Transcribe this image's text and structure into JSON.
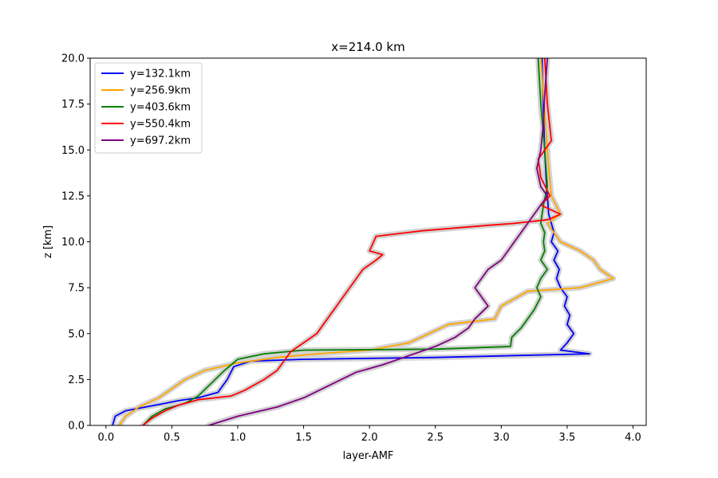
{
  "chart_data": {
    "type": "line",
    "title": "x=214.0 km",
    "xlabel": "layer-AMF",
    "ylabel": "z [km]",
    "xlim": [
      -0.12,
      4.1
    ],
    "ylim": [
      0,
      20
    ],
    "xticks": [
      "0.0",
      "0.5",
      "1.0",
      "1.5",
      "2.0",
      "2.5",
      "3.0",
      "3.5",
      "4.0"
    ],
    "yticks": [
      "0.0",
      "2.5",
      "5.0",
      "7.5",
      "10.0",
      "12.5",
      "15.0",
      "17.5",
      "20.0"
    ],
    "grid": false,
    "legend_position": "top-left",
    "uncertainty_band_color": "#d3d3d3",
    "series": [
      {
        "name": "y=132.1km",
        "color": "#0000ff",
        "points": [
          [
            0.05,
            0.0
          ],
          [
            0.07,
            0.5
          ],
          [
            0.15,
            0.8
          ],
          [
            0.3,
            1.0
          ],
          [
            0.45,
            1.2
          ],
          [
            0.55,
            1.35
          ],
          [
            0.7,
            1.5
          ],
          [
            0.85,
            1.8
          ],
          [
            0.92,
            2.5
          ],
          [
            0.97,
            3.2
          ],
          [
            1.1,
            3.5
          ],
          [
            1.5,
            3.6
          ],
          [
            2.5,
            3.7
          ],
          [
            3.67,
            3.9
          ],
          [
            3.45,
            4.1
          ],
          [
            3.5,
            4.5
          ],
          [
            3.55,
            5.0
          ],
          [
            3.5,
            5.5
          ],
          [
            3.52,
            6.0
          ],
          [
            3.48,
            6.5
          ],
          [
            3.5,
            7.0
          ],
          [
            3.45,
            7.5
          ],
          [
            3.42,
            8.0
          ],
          [
            3.44,
            8.5
          ],
          [
            3.4,
            9.0
          ],
          [
            3.43,
            9.5
          ],
          [
            3.38,
            10.0
          ],
          [
            3.4,
            10.5
          ],
          [
            3.38,
            11.0
          ],
          [
            3.36,
            11.5
          ],
          [
            3.35,
            12.5
          ],
          [
            3.34,
            13.5
          ],
          [
            3.33,
            15.0
          ],
          [
            3.32,
            17.0
          ],
          [
            3.31,
            20.0
          ]
        ]
      },
      {
        "name": "y=256.9km",
        "color": "#ffa500",
        "points": [
          [
            0.1,
            0.0
          ],
          [
            0.15,
            0.5
          ],
          [
            0.25,
            1.0
          ],
          [
            0.4,
            1.5
          ],
          [
            0.5,
            2.0
          ],
          [
            0.6,
            2.5
          ],
          [
            0.75,
            3.0
          ],
          [
            1.0,
            3.4
          ],
          [
            1.3,
            3.7
          ],
          [
            1.6,
            3.9
          ],
          [
            2.0,
            4.1
          ],
          [
            2.3,
            4.5
          ],
          [
            2.45,
            5.0
          ],
          [
            2.6,
            5.5
          ],
          [
            2.95,
            5.8
          ],
          [
            3.0,
            6.5
          ],
          [
            3.2,
            7.3
          ],
          [
            3.6,
            7.5
          ],
          [
            3.85,
            8.0
          ],
          [
            3.75,
            8.5
          ],
          [
            3.7,
            9.0
          ],
          [
            3.6,
            9.5
          ],
          [
            3.45,
            10.0
          ],
          [
            3.4,
            10.5
          ],
          [
            3.35,
            11.0
          ],
          [
            3.45,
            11.5
          ],
          [
            3.38,
            12.5
          ],
          [
            3.36,
            14.0
          ],
          [
            3.34,
            16.0
          ],
          [
            3.32,
            18.0
          ],
          [
            3.3,
            20.0
          ]
        ]
      },
      {
        "name": "y=403.6km",
        "color": "#008000",
        "points": [
          [
            0.28,
            0.0
          ],
          [
            0.35,
            0.5
          ],
          [
            0.45,
            0.9
          ],
          [
            0.6,
            1.2
          ],
          [
            0.7,
            1.6
          ],
          [
            0.8,
            2.3
          ],
          [
            0.9,
            3.0
          ],
          [
            1.0,
            3.6
          ],
          [
            1.2,
            3.9
          ],
          [
            1.5,
            4.1
          ],
          [
            2.5,
            4.15
          ],
          [
            3.07,
            4.3
          ],
          [
            3.08,
            4.8
          ],
          [
            3.15,
            5.3
          ],
          [
            3.2,
            5.8
          ],
          [
            3.25,
            6.3
          ],
          [
            3.3,
            7.0
          ],
          [
            3.27,
            7.5
          ],
          [
            3.3,
            8.0
          ],
          [
            3.35,
            8.5
          ],
          [
            3.3,
            9.0
          ],
          [
            3.33,
            9.5
          ],
          [
            3.32,
            10.0
          ],
          [
            3.33,
            10.5
          ],
          [
            3.3,
            11.0
          ],
          [
            3.31,
            11.5
          ],
          [
            3.32,
            12.0
          ],
          [
            3.35,
            13.0
          ],
          [
            3.33,
            15.0
          ],
          [
            3.3,
            17.5
          ],
          [
            3.28,
            20.0
          ]
        ]
      },
      {
        "name": "y=550.4km",
        "color": "#ff0000",
        "points": [
          [
            0.28,
            0.0
          ],
          [
            0.35,
            0.4
          ],
          [
            0.45,
            0.8
          ],
          [
            0.55,
            1.1
          ],
          [
            0.7,
            1.4
          ],
          [
            0.95,
            1.6
          ],
          [
            1.05,
            1.9
          ],
          [
            1.2,
            2.5
          ],
          [
            1.3,
            3.0
          ],
          [
            1.35,
            3.5
          ],
          [
            1.4,
            4.0
          ],
          [
            1.5,
            4.5
          ],
          [
            1.6,
            5.0
          ],
          [
            1.65,
            5.5
          ],
          [
            1.7,
            6.0
          ],
          [
            1.75,
            6.5
          ],
          [
            1.8,
            7.0
          ],
          [
            1.85,
            7.5
          ],
          [
            1.95,
            8.5
          ],
          [
            2.05,
            9.0
          ],
          [
            2.1,
            9.3
          ],
          [
            2.0,
            9.5
          ],
          [
            2.05,
            10.3
          ],
          [
            2.4,
            10.6
          ],
          [
            2.9,
            10.9
          ],
          [
            3.1,
            11.0
          ],
          [
            3.35,
            11.2
          ],
          [
            3.45,
            11.5
          ],
          [
            3.3,
            12.0
          ],
          [
            3.37,
            12.5
          ],
          [
            3.3,
            13.5
          ],
          [
            3.28,
            14.5
          ],
          [
            3.38,
            15.5
          ],
          [
            3.35,
            17.5
          ],
          [
            3.33,
            20.0
          ]
        ]
      },
      {
        "name": "y=697.2km",
        "color": "#800080",
        "points": [
          [
            0.78,
            0.0
          ],
          [
            1.0,
            0.5
          ],
          [
            1.3,
            1.0
          ],
          [
            1.5,
            1.5
          ],
          [
            1.7,
            2.2
          ],
          [
            1.9,
            2.9
          ],
          [
            2.1,
            3.3
          ],
          [
            2.3,
            3.8
          ],
          [
            2.5,
            4.3
          ],
          [
            2.65,
            4.8
          ],
          [
            2.75,
            5.3
          ],
          [
            2.8,
            5.8
          ],
          [
            2.9,
            6.5
          ],
          [
            2.85,
            7.0
          ],
          [
            2.8,
            7.5
          ],
          [
            2.85,
            8.0
          ],
          [
            2.9,
            8.5
          ],
          [
            3.0,
            9.0
          ],
          [
            3.05,
            9.5
          ],
          [
            3.1,
            10.0
          ],
          [
            3.15,
            10.5
          ],
          [
            3.2,
            11.0
          ],
          [
            3.25,
            11.5
          ],
          [
            3.3,
            12.0
          ],
          [
            3.35,
            12.5
          ],
          [
            3.3,
            13.0
          ],
          [
            3.27,
            14.0
          ],
          [
            3.3,
            15.0
          ],
          [
            3.32,
            16.5
          ],
          [
            3.33,
            18.0
          ],
          [
            3.35,
            20.0
          ]
        ]
      }
    ]
  }
}
